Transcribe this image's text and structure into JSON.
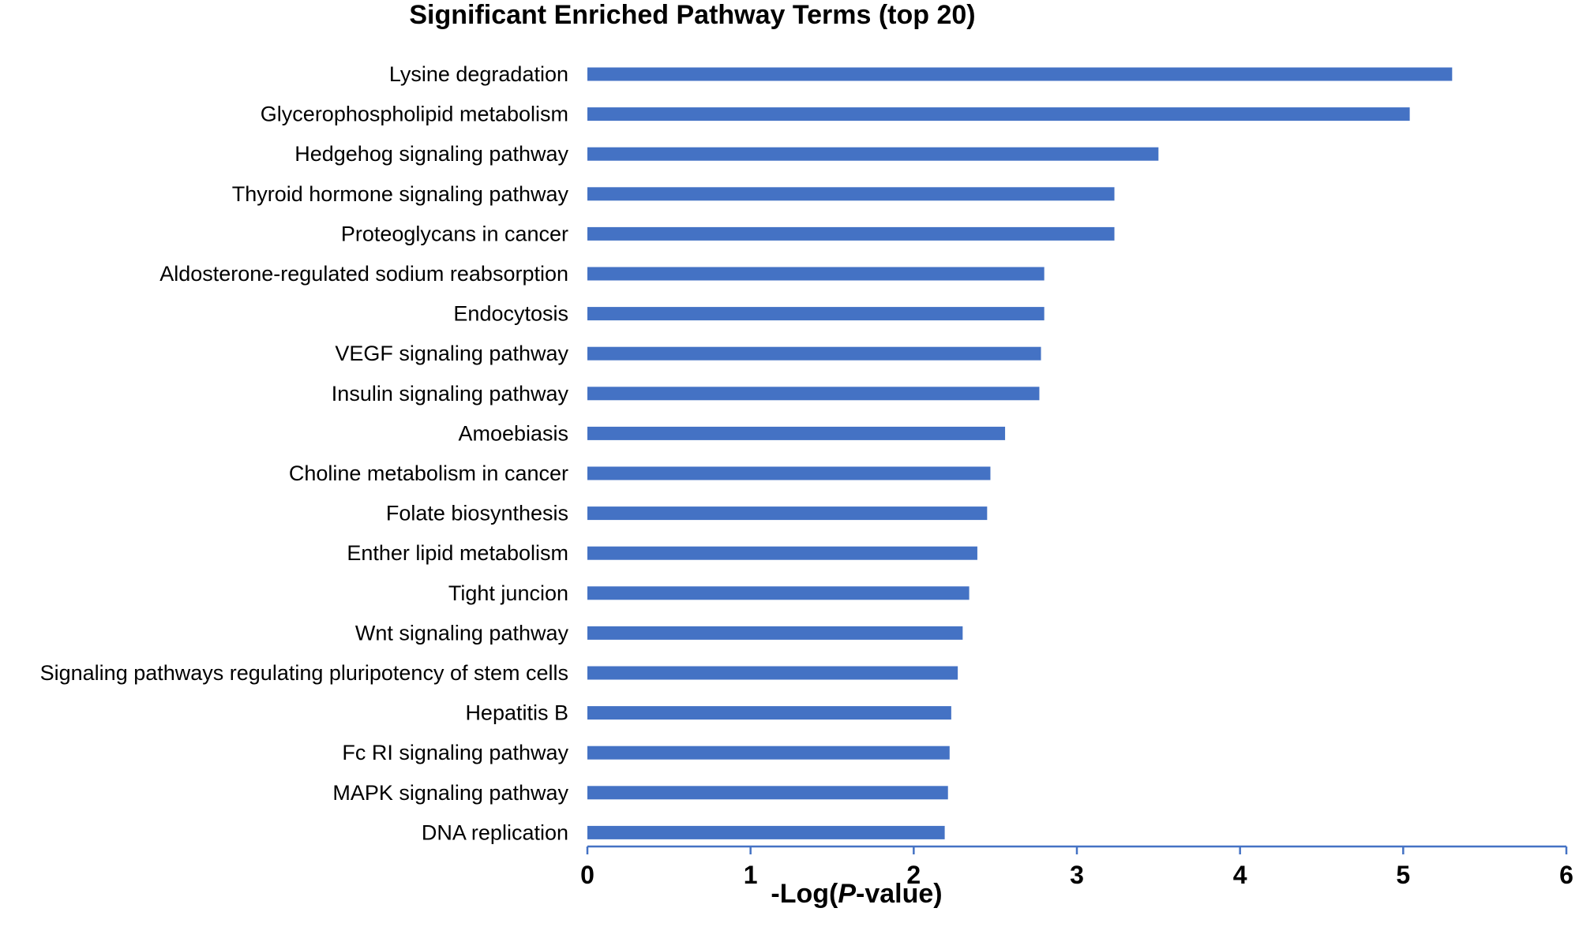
{
  "chart_data": {
    "type": "bar",
    "orientation": "horizontal",
    "title": "Significant Enriched Pathway Terms (top 20)",
    "xlabel_parts": [
      "-Log(",
      "P",
      "-value)"
    ],
    "ylabel": "",
    "xlim": [
      0,
      6
    ],
    "xticks": [
      "0",
      "1",
      "2",
      "3",
      "4",
      "5",
      "6"
    ],
    "grid": false,
    "bar_color": "#4472C4",
    "axis_color": "#4472C4",
    "categories": [
      "Lysine degradation",
      "Glycerophospholipid metabolism",
      "Hedgehog signaling pathway",
      "Thyroid hormone signaling pathway",
      "Proteoglycans in cancer",
      "Aldosterone-regulated sodium reabsorption",
      "Endocytosis",
      "VEGF signaling pathway",
      "Insulin signaling pathway",
      "Amoebiasis",
      "Choline metabolism in cancer",
      "Folate biosynthesis",
      "Enther lipid metabolism",
      "Tight juncion",
      "Wnt signaling pathway",
      "Signaling pathways regulating pluripotency of stem cells",
      "Hepatitis B",
      "Fc RI signaling pathway",
      "MAPK signaling pathway",
      "DNA replication"
    ],
    "values": [
      5.3,
      5.04,
      3.5,
      3.23,
      3.23,
      2.8,
      2.8,
      2.78,
      2.77,
      2.56,
      2.47,
      2.45,
      2.39,
      2.34,
      2.3,
      2.27,
      2.23,
      2.22,
      2.21,
      2.19
    ]
  }
}
